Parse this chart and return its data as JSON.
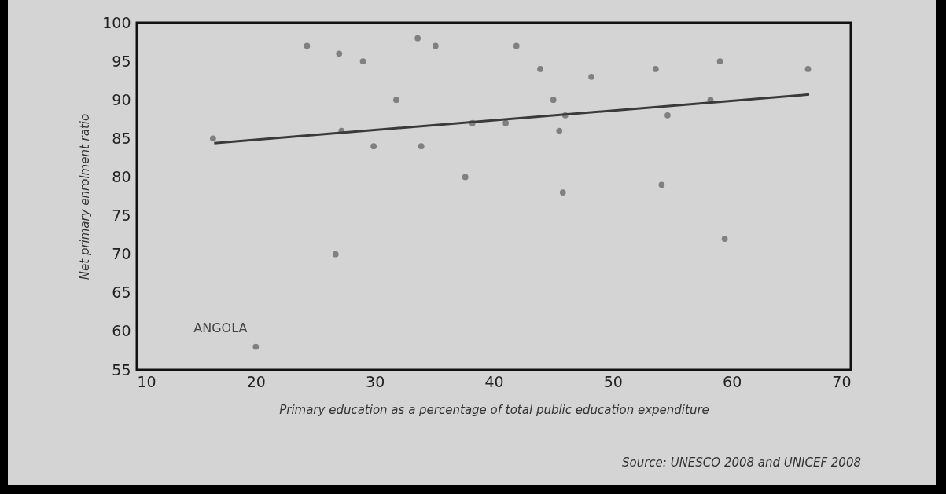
{
  "chart_data": {
    "type": "scatter",
    "xlabel": "Primary education as a percentage of total public education expenditure",
    "ylabel": "Net primary enrolment ratio",
    "xlim": [
      10,
      70
    ],
    "ylim": [
      55,
      100
    ],
    "xticks": [
      10,
      20,
      30,
      40,
      50,
      60,
      70
    ],
    "yticks": [
      55,
      60,
      65,
      70,
      75,
      80,
      85,
      90,
      95,
      100
    ],
    "grid": false,
    "series": [
      {
        "color": "#808080",
        "marker": "circle",
        "x": [
          16.4,
          20.0,
          24.3,
          27.0,
          26.7,
          27.2,
          29.0,
          31.8,
          29.9,
          33.6,
          33.9,
          35.1,
          37.6,
          38.2,
          41.0,
          41.9,
          43.9,
          45.0,
          45.5,
          45.8,
          46.0,
          48.2,
          53.6,
          54.1,
          54.6,
          58.2,
          59.0,
          59.4,
          66.4
        ],
        "values": [
          85,
          58,
          97,
          96,
          70,
          86,
          95,
          90,
          84,
          98,
          84,
          97,
          80,
          87,
          87,
          97,
          94,
          90,
          86,
          78,
          88,
          93,
          94,
          79,
          88,
          90,
          95,
          72,
          94
        ]
      },
      {
        "type": "line",
        "color": "#3a3a3a",
        "line_style": "solid",
        "x": [
          16.5,
          66.5
        ],
        "values": [
          84.4,
          90.7
        ]
      }
    ],
    "annotations": [
      {
        "text": "ANGOLA",
        "x": 20.0,
        "y": 58
      },
      "Source: UNESCO 2008 and UNICEF 2008"
    ]
  }
}
